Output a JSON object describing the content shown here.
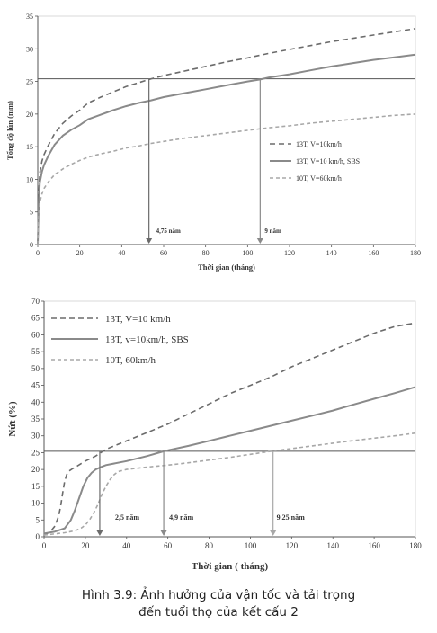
{
  "caption": {
    "line1": "Hình 3.9: Ảnh hưởng của vận tốc và tải trọng",
    "line2": "đến tuổi thọ của kết cấu 2"
  },
  "chart_data": [
    {
      "type": "line",
      "title": "",
      "xlabel": "Thời gian (tháng)",
      "ylabel": "Tổng độ lún (mm)",
      "xlim": [
        0,
        180
      ],
      "ylim": [
        0,
        35
      ],
      "xticks": [
        0,
        20,
        40,
        60,
        80,
        100,
        120,
        140,
        160,
        180
      ],
      "yticks": [
        0,
        5,
        10,
        15,
        20,
        25,
        30,
        35
      ],
      "grid": false,
      "legend_position": "right",
      "threshold": 25.4,
      "series": [
        {
          "name": "13T, V=10km/h",
          "color": "#6b6b6b",
          "style": "dashed",
          "x": [
            0,
            0.5,
            1,
            2,
            3,
            5,
            8,
            12,
            16,
            20,
            24,
            30,
            36,
            42,
            48,
            54,
            60,
            70,
            80,
            90,
            100,
            110,
            120,
            130,
            140,
            150,
            160,
            170,
            180
          ],
          "y": [
            0,
            8,
            11,
            12.8,
            13.8,
            15.2,
            17,
            18.6,
            19.7,
            20.6,
            21.7,
            22.6,
            23.4,
            24.2,
            24.8,
            25.4,
            25.9,
            26.6,
            27.3,
            28,
            28.6,
            29.3,
            29.9,
            30.5,
            31.1,
            31.6,
            32.1,
            32.6,
            33.1
          ]
        },
        {
          "name": "13T, V=10 km/h, SBS",
          "color": "#8a8a8a",
          "style": "solid",
          "x": [
            0,
            0.5,
            1,
            2,
            3,
            5,
            8,
            12,
            16,
            20,
            24,
            30,
            36,
            42,
            48,
            54,
            60,
            70,
            80,
            90,
            100,
            106,
            110,
            120,
            130,
            140,
            150,
            160,
            170,
            180
          ],
          "y": [
            0,
            6.5,
            9.5,
            11.2,
            12.2,
            13.6,
            15.3,
            16.7,
            17.6,
            18.3,
            19.2,
            19.9,
            20.6,
            21.2,
            21.7,
            22.1,
            22.6,
            23.2,
            23.8,
            24.4,
            25,
            25.3,
            25.6,
            26.1,
            26.7,
            27.3,
            27.8,
            28.3,
            28.7,
            29.1
          ]
        },
        {
          "name": "10T, V=60km/h",
          "color": "#a8a8a8",
          "style": "dashed",
          "x": [
            0,
            0.5,
            1,
            2,
            3,
            5,
            8,
            12,
            16,
            20,
            24,
            30,
            36,
            42,
            48,
            54,
            60,
            70,
            80,
            90,
            100,
            110,
            120,
            130,
            140,
            150,
            160,
            170,
            180
          ],
          "y": [
            0,
            4.5,
            6.5,
            7.8,
            8.6,
            9.6,
            10.7,
            11.6,
            12.3,
            12.9,
            13.4,
            13.9,
            14.3,
            14.8,
            15.1,
            15.5,
            15.8,
            16.3,
            16.7,
            17.1,
            17.5,
            17.9,
            18.2,
            18.6,
            18.9,
            19.2,
            19.5,
            19.8,
            20
          ]
        }
      ],
      "annotations": [
        {
          "text": "4,75 năm",
          "x": 53
        },
        {
          "text": "9 năm",
          "x": 106
        }
      ]
    },
    {
      "type": "line",
      "title": "",
      "xlabel": "Thời gian ( tháng)",
      "ylabel": "Nứt  (%)",
      "xlim": [
        0,
        180
      ],
      "ylim": [
        0,
        70
      ],
      "xticks": [
        0,
        20,
        40,
        60,
        80,
        100,
        120,
        140,
        160,
        180
      ],
      "yticks": [
        0,
        5,
        10,
        15,
        20,
        25,
        30,
        35,
        40,
        45,
        50,
        55,
        60,
        65,
        70
      ],
      "grid": false,
      "legend_position": "top-left",
      "threshold": 25.4,
      "series": [
        {
          "name": "13T, V=10 km/h",
          "color": "#6b6b6b",
          "style": "dashed",
          "x": [
            0,
            3,
            5,
            7,
            8,
            9,
            10,
            11,
            12,
            14,
            16,
            20,
            25,
            28,
            30,
            40,
            50,
            60,
            70,
            80,
            90,
            100,
            110,
            120,
            130,
            140,
            150,
            160,
            170,
            180
          ],
          "y": [
            0.5,
            1.5,
            3,
            6,
            9,
            13,
            16.5,
            18.5,
            19.5,
            20.3,
            21,
            22.5,
            24,
            25.2,
            26,
            28.5,
            31,
            33.5,
            36.5,
            39.5,
            42.5,
            45,
            47.5,
            50.5,
            53,
            55.5,
            58,
            60.5,
            62.5,
            63.5
          ]
        },
        {
          "name": "13T, v=10km/h, SBS",
          "color": "#8a8a8a",
          "style": "solid",
          "x": [
            0,
            5,
            10,
            13,
            15,
            17,
            19,
            21,
            23,
            25,
            28,
            30,
            40,
            50,
            58,
            60,
            70,
            80,
            90,
            100,
            110,
            120,
            130,
            140,
            150,
            160,
            170,
            180
          ],
          "y": [
            1,
            1.5,
            2.5,
            5,
            8,
            11.5,
            15,
            17.5,
            19,
            20,
            20.8,
            21.3,
            22.5,
            24,
            25.4,
            25.7,
            27,
            28.5,
            30,
            31.5,
            33,
            34.5,
            36,
            37.5,
            39.3,
            41,
            42.7,
            44.5
          ]
        },
        {
          "name": "10T, 60km/h",
          "color": "#a8a8a8",
          "style": "dashed",
          "x": [
            0,
            10,
            15,
            18,
            20,
            22,
            24,
            26,
            28,
            30,
            32,
            34,
            36,
            40,
            50,
            60,
            70,
            80,
            90,
            100,
            110,
            120,
            130,
            140,
            150,
            160,
            170,
            180
          ],
          "y": [
            0.5,
            1.2,
            1.8,
            2.6,
            3.5,
            5,
            7,
            9.5,
            12.5,
            15,
            17,
            18.5,
            19.4,
            20,
            20.7,
            21.3,
            22,
            22.8,
            23.6,
            24.5,
            25.4,
            26.2,
            27,
            27.8,
            28.6,
            29.3,
            30,
            30.8
          ]
        }
      ],
      "annotations": [
        {
          "text": "2,5 năm",
          "x": 27
        },
        {
          "text": "4,9 năm",
          "x": 58
        },
        {
          "text": "9.25 năm",
          "x": 111
        }
      ]
    }
  ]
}
